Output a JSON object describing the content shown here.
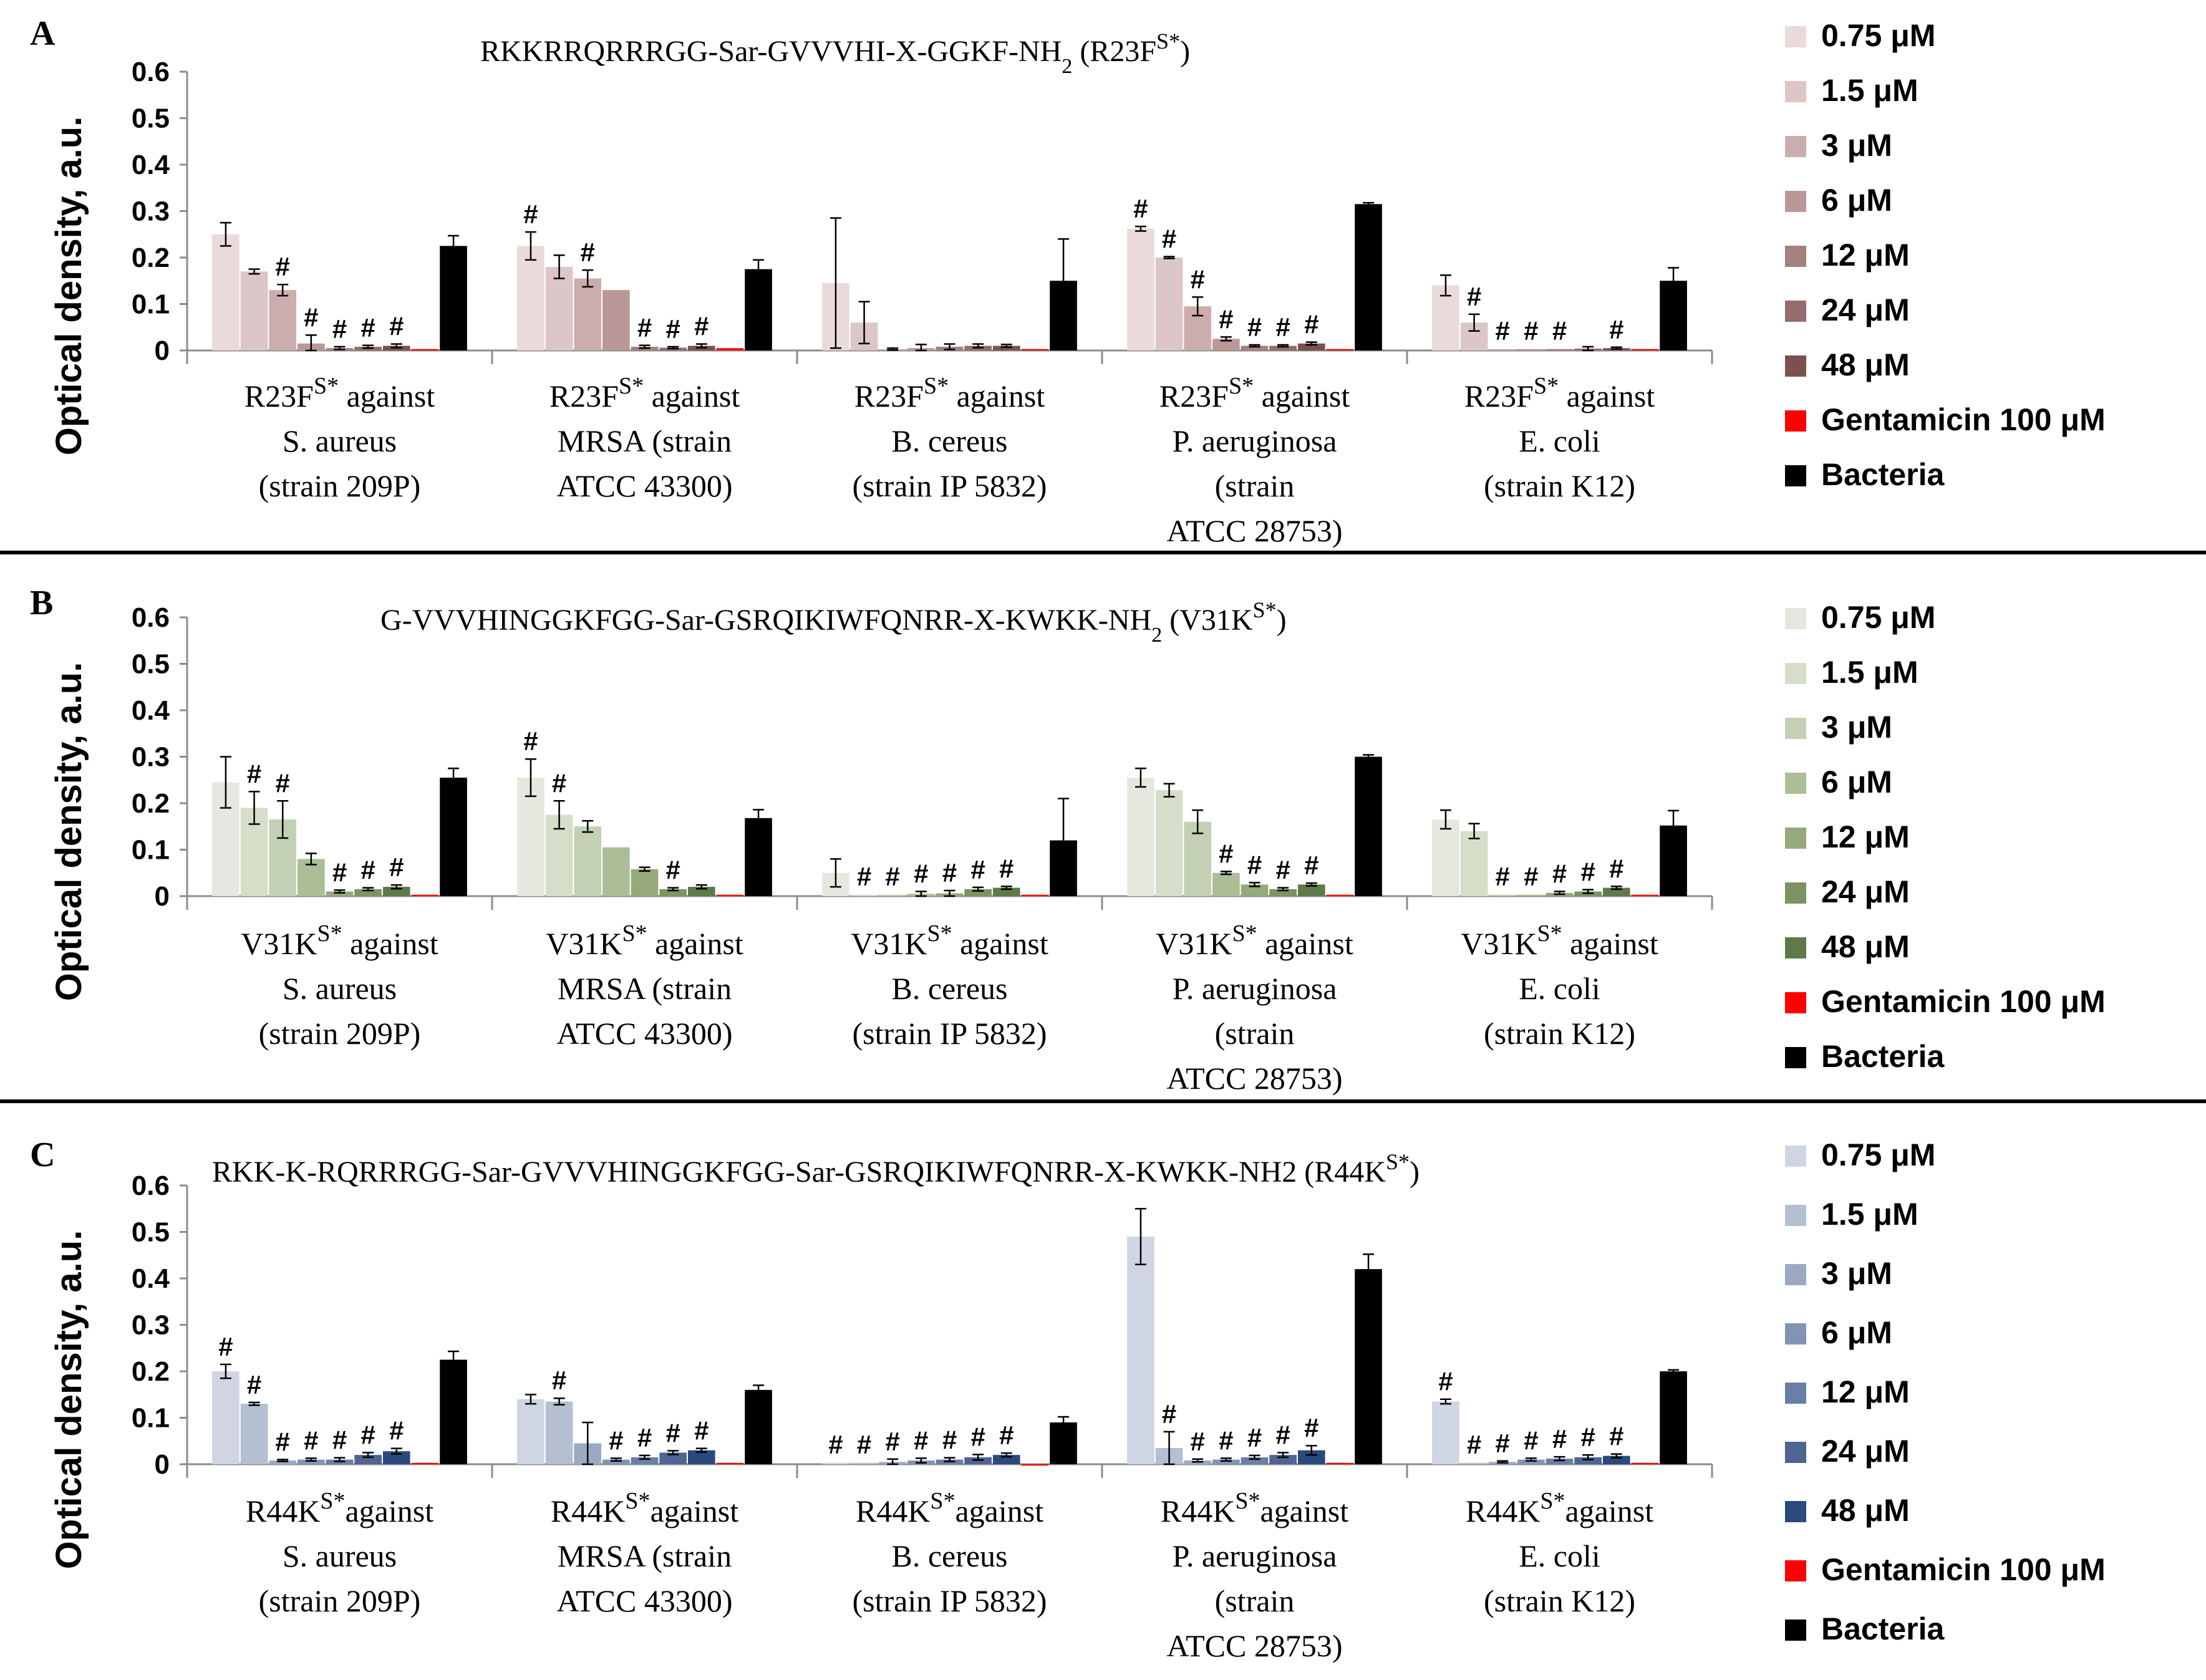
{
  "figure": {
    "ylabel": "Optical density, a.u.",
    "yticks": [
      "0.6",
      "0.5",
      "0.4",
      "0.3",
      "0.2",
      "0.1",
      "0"
    ],
    "legend_colors": {
      "gentamicin": "#ff0000",
      "bacteria": "#000000"
    },
    "legend_labels": [
      "0.75 μM",
      "1.5 μM",
      "3 μM",
      "6 μM",
      "12 μM",
      "24 μM",
      "48 μM",
      "Gentamicin 100 μM",
      "Bacteria"
    ]
  },
  "chart_data": [
    {
      "type": "bar",
      "panel": "A",
      "title": "RKKRRQRRRGG-Sar-GVVVHI-X-GGKF-NH",
      "title_sub": "2",
      "title_tail": "  (R23F",
      "title_sup": "S*",
      "title_close": ")",
      "ylabel": "Optical density, a.u.",
      "ylim": [
        0,
        0.6
      ],
      "series_colors": [
        "#eadada",
        "#dcc6c6",
        "#ccadad",
        "#bb9898",
        "#a67f7f",
        "#956b6b",
        "#7d5050",
        "#ff0000",
        "#000000"
      ],
      "groups": [
        {
          "pre": "R23F",
          "sup": "S*",
          "post": " against",
          "lines": [
            "S. aureus",
            "(strain 209P)"
          ],
          "values": [
            0.25,
            0.17,
            0.13,
            0.015,
            0.005,
            0.008,
            0.01,
            0.003,
            0.225
          ],
          "errors": [
            0.025,
            0.005,
            0.012,
            0.018,
            0.003,
            0.003,
            0.004,
            0.001,
            0.022
          ],
          "hash": [
            false,
            false,
            true,
            true,
            true,
            true,
            true,
            false,
            false
          ]
        },
        {
          "pre": "R23F",
          "sup": "S*",
          "post": " against",
          "lines": [
            "MRSA (strain",
            "ATCC 43300)"
          ],
          "values": [
            0.225,
            0.18,
            0.155,
            0.13,
            0.008,
            0.006,
            0.01,
            0.005,
            0.175
          ],
          "errors": [
            0.03,
            0.025,
            0.018,
            0.0,
            0.003,
            0.002,
            0.004,
            0.001,
            0.02
          ],
          "hash": [
            true,
            false,
            true,
            false,
            true,
            true,
            true,
            false,
            false
          ]
        },
        {
          "pre": "R23F",
          "sup": "S*",
          "post": " against",
          "lines": [
            "B. cereus",
            "(strain IP 5832)"
          ],
          "values": [
            0.145,
            0.06,
            0.003,
            0.005,
            0.008,
            0.01,
            0.01,
            0.003,
            0.15
          ],
          "errors": [
            0.14,
            0.045,
            0.002,
            0.008,
            0.006,
            0.004,
            0.003,
            0.001,
            0.09
          ],
          "hash": [
            false,
            false,
            false,
            false,
            false,
            false,
            false,
            false,
            false
          ]
        },
        {
          "pre": "R23F",
          "sup": "S*",
          "post": " against",
          "lines": [
            "P. aeruginosa",
            "(strain",
            "ATCC 28753)"
          ],
          "values": [
            0.262,
            0.2,
            0.095,
            0.025,
            0.01,
            0.01,
            0.015,
            0.003,
            0.315
          ],
          "errors": [
            0.005,
            0.002,
            0.02,
            0.004,
            0.002,
            0.002,
            0.003,
            0.001,
            0.003
          ],
          "hash": [
            true,
            true,
            true,
            true,
            true,
            true,
            true,
            false,
            false
          ]
        },
        {
          "pre": "R23F",
          "sup": "S*",
          "post": " against",
          "lines": [
            "E. coli",
            "(strain K12)"
          ],
          "values": [
            0.14,
            0.06,
            0.003,
            0.003,
            0.003,
            0.004,
            0.005,
            0.003,
            0.15
          ],
          "errors": [
            0.022,
            0.018,
            0.001,
            0.001,
            0.001,
            0.004,
            0.002,
            0.001,
            0.028
          ],
          "hash": [
            false,
            true,
            true,
            true,
            true,
            false,
            true,
            false,
            false
          ]
        }
      ]
    },
    {
      "type": "bar",
      "panel": "B",
      "title": "G-VVVHINGGKFGG-Sar-GSRQIKIWFQNRR-X-KWKK-NH",
      "title_sub": "2",
      "title_tail": "  (V31K",
      "title_sup": "S*",
      "title_close": ")",
      "ylabel": "Optical density, a.u.",
      "ylim": [
        0,
        0.6
      ],
      "series_colors": [
        "#e5e8de",
        "#d6dec9",
        "#c4d0b3",
        "#adbe97",
        "#95a97a",
        "#7c9362",
        "#5e7a48",
        "#ff0000",
        "#000000"
      ],
      "groups": [
        {
          "pre": "V31K",
          "sup": "S*",
          "post": " against",
          "lines": [
            "S. aureus",
            "(strain 209P)"
          ],
          "values": [
            0.245,
            0.19,
            0.165,
            0.08,
            0.01,
            0.015,
            0.02,
            0.003,
            0.255
          ],
          "errors": [
            0.055,
            0.035,
            0.04,
            0.012,
            0.003,
            0.003,
            0.004,
            0.001,
            0.02
          ],
          "hash": [
            false,
            true,
            true,
            false,
            true,
            true,
            true,
            false,
            false
          ]
        },
        {
          "pre": "V31K",
          "sup": "S*",
          "post": " against",
          "lines": [
            "MRSA (strain",
            "ATCC 43300)"
          ],
          "values": [
            0.255,
            0.175,
            0.15,
            0.105,
            0.058,
            0.015,
            0.02,
            0.003,
            0.168
          ],
          "errors": [
            0.04,
            0.03,
            0.012,
            0.0,
            0.004,
            0.003,
            0.004,
            0.001,
            0.018
          ],
          "hash": [
            true,
            true,
            false,
            false,
            false,
            true,
            false,
            false,
            false
          ]
        },
        {
          "pre": "V31K",
          "sup": "S*",
          "post": " against",
          "lines": [
            "B. cereus",
            "(strain IP 5832)"
          ],
          "values": [
            0.05,
            0.003,
            0.003,
            0.005,
            0.006,
            0.015,
            0.018,
            0.003,
            0.12
          ],
          "errors": [
            0.03,
            0.001,
            0.001,
            0.005,
            0.006,
            0.004,
            0.003,
            0.001,
            0.09
          ],
          "hash": [
            false,
            true,
            true,
            true,
            true,
            true,
            true,
            false,
            false
          ]
        },
        {
          "pre": "V31K",
          "sup": "S*",
          "post": " against",
          "lines": [
            "P. aeruginosa",
            "(strain",
            "ATCC 28753)"
          ],
          "values": [
            0.255,
            0.228,
            0.16,
            0.05,
            0.025,
            0.015,
            0.025,
            0.003,
            0.3
          ],
          "errors": [
            0.02,
            0.014,
            0.025,
            0.003,
            0.004,
            0.003,
            0.003,
            0.001,
            0.004
          ],
          "hash": [
            false,
            false,
            false,
            true,
            true,
            true,
            true,
            false,
            false
          ]
        },
        {
          "pre": "V31K",
          "sup": "S*",
          "post": " against",
          "lines": [
            "E. coli",
            "(strain K12)"
          ],
          "values": [
            0.165,
            0.14,
            0.003,
            0.003,
            0.007,
            0.01,
            0.018,
            0.003,
            0.152
          ],
          "errors": [
            0.02,
            0.016,
            0.001,
            0.001,
            0.003,
            0.004,
            0.003,
            0.001,
            0.032
          ],
          "hash": [
            false,
            false,
            true,
            true,
            true,
            true,
            true,
            false,
            false
          ]
        }
      ]
    },
    {
      "type": "bar",
      "panel": "C",
      "title": "RKK-K-RQRRRGG-Sar-GVVVHINGGKFGG-Sar-GSRQIKIWFQNRR-X-KWKK-NH2 (R44K",
      "title_sub": "",
      "title_tail": "",
      "title_sup": "S*",
      "title_close": ")",
      "ylabel": "Optical density, a.u.",
      "ylim": [
        0,
        0.6
      ],
      "series_colors": [
        "#cfd5e2",
        "#b5bfd2",
        "#9ba9c3",
        "#8294b4",
        "#6a7fa5",
        "#4d6590",
        "#2a4a7d",
        "#ff0000",
        "#000000"
      ],
      "groups": [
        {
          "pre": "R44K",
          "sup": "S*",
          "post": "against",
          "lines": [
            "S. aureus",
            "(strain 209P)"
          ],
          "values": [
            0.2,
            0.13,
            0.008,
            0.01,
            0.01,
            0.02,
            0.028,
            0.003,
            0.225
          ],
          "errors": [
            0.015,
            0.003,
            0.002,
            0.003,
            0.004,
            0.005,
            0.006,
            0.001,
            0.018
          ],
          "hash": [
            true,
            true,
            true,
            true,
            true,
            true,
            true,
            false,
            false
          ]
        },
        {
          "pre": "R44K",
          "sup": "S*",
          "post": "against",
          "lines": [
            "MRSA (strain",
            "ATCC 43300)"
          ],
          "values": [
            0.14,
            0.135,
            0.045,
            0.01,
            0.015,
            0.025,
            0.03,
            0.003,
            0.16
          ],
          "errors": [
            0.01,
            0.007,
            0.045,
            0.003,
            0.004,
            0.004,
            0.004,
            0.001,
            0.01
          ],
          "hash": [
            false,
            true,
            false,
            true,
            true,
            true,
            true,
            false,
            false
          ]
        },
        {
          "pre": "R44K",
          "sup": "S*",
          "post": "against",
          "lines": [
            "B. cereus",
            "(strain IP 5832)"
          ],
          "values": [
            0.003,
            0.003,
            0.005,
            0.008,
            0.01,
            0.015,
            0.02,
            -0.003,
            0.09
          ],
          "errors": [
            0.001,
            0.001,
            0.006,
            0.005,
            0.004,
            0.006,
            0.004,
            0.001,
            0.012
          ],
          "hash": [
            true,
            true,
            true,
            true,
            true,
            true,
            true,
            false,
            false
          ]
        },
        {
          "pre": "R44K",
          "sup": "S*",
          "post": "against",
          "lines": [
            "P. aeruginosa",
            "(strain",
            "ATCC 28753)"
          ],
          "values": [
            0.49,
            0.035,
            0.008,
            0.01,
            0.015,
            0.02,
            0.03,
            0.003,
            0.42
          ],
          "errors": [
            0.06,
            0.035,
            0.003,
            0.003,
            0.004,
            0.005,
            0.01,
            0.001,
            0.032
          ],
          "hash": [
            false,
            true,
            true,
            true,
            true,
            true,
            true,
            false,
            false
          ]
        },
        {
          "pre": "R44K",
          "sup": "S*",
          "post": "against",
          "lines": [
            "E. coli",
            "(strain K12)"
          ],
          "values": [
            0.135,
            0.003,
            0.005,
            0.01,
            0.012,
            0.015,
            0.018,
            0.003,
            0.2
          ],
          "errors": [
            0.005,
            0.001,
            0.002,
            0.003,
            0.004,
            0.005,
            0.004,
            0.001,
            0.003
          ],
          "hash": [
            true,
            true,
            true,
            true,
            true,
            true,
            true,
            false,
            false
          ]
        }
      ]
    }
  ]
}
